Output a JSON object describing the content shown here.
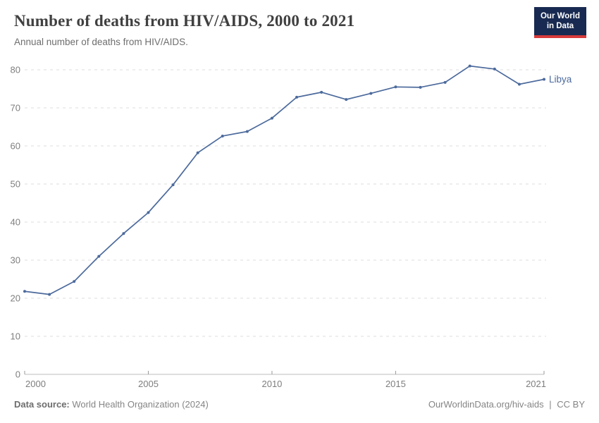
{
  "header": {
    "title": "Number of deaths from HIV/AIDS, 2000 to 2021",
    "subtitle": "Annual number of deaths from HIV/AIDS.",
    "logo": {
      "line1": "Our World",
      "line2": "in Data"
    }
  },
  "chart_data": {
    "type": "line",
    "title": "Number of deaths from HIV/AIDS, 2000 to 2021",
    "subtitle": "Annual number of deaths from HIV/AIDS.",
    "x": [
      2000,
      2001,
      2002,
      2003,
      2004,
      2005,
      2006,
      2007,
      2008,
      2009,
      2010,
      2011,
      2012,
      2013,
      2014,
      2015,
      2016,
      2017,
      2018,
      2019,
      2020,
      2021
    ],
    "series": [
      {
        "name": "Libya",
        "color": "#4c6a9c",
        "values": [
          21.8,
          21,
          24.4,
          31,
          37,
          42.5,
          49.8,
          58.2,
          62.6,
          63.8,
          67.3,
          72.8,
          74.1,
          72.2,
          73.8,
          75.5,
          75.4,
          76.7,
          81,
          80.2,
          76.2,
          77.5
        ]
      }
    ],
    "xlim": [
      2000,
      2021
    ],
    "ylim": [
      0,
      80
    ],
    "x_ticks": [
      2000,
      2005,
      2010,
      2015,
      2021
    ],
    "y_ticks": [
      0,
      10,
      20,
      30,
      40,
      50,
      60,
      70,
      80
    ],
    "grid": "horizontal-dashed",
    "legend": "end-of-line-label",
    "xlabel": "",
    "ylabel": ""
  },
  "footer": {
    "datasource_label": "Data source:",
    "datasource": "World Health Organization (2024)",
    "link": "OurWorldinData.org/hiv-aids",
    "separator": "|",
    "license": "CC BY"
  },
  "colors": {
    "accent": "#4c6a9c",
    "logo_bg": "#182a51",
    "logo_bar": "#d73a3a",
    "grid": "#dcdcdc",
    "axis": "#bcbcbc",
    "tick": "#9a9a9a",
    "tick_text": "#7e7e7e",
    "title_text": "#404040",
    "subtitle_text": "#6e6e6e",
    "footer_text": "#858585"
  }
}
